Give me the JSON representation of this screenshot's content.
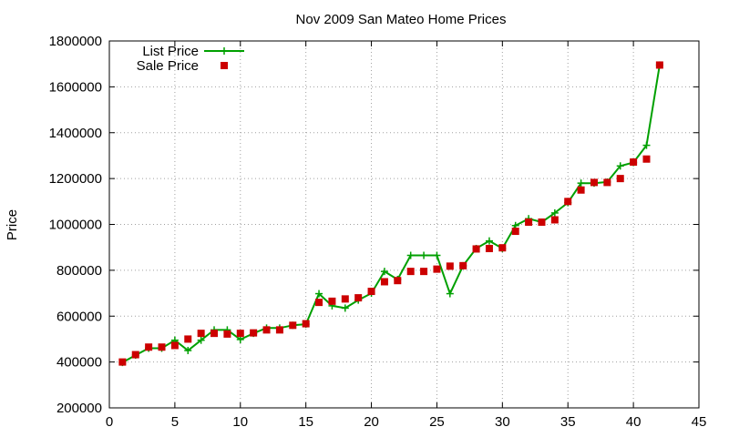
{
  "chart_data": {
    "type": "line",
    "title": "Nov 2009 San Mateo Home Prices",
    "xlabel": "",
    "ylabel": "Price",
    "xlim": [
      0,
      45
    ],
    "ylim": [
      200000,
      1800000
    ],
    "x_ticks": [
      0,
      5,
      10,
      15,
      20,
      25,
      30,
      35,
      40,
      45
    ],
    "y_ticks": [
      200000,
      400000,
      600000,
      800000,
      1000000,
      1200000,
      1400000,
      1600000,
      1800000
    ],
    "grid": true,
    "legend_position": "top-left",
    "series": [
      {
        "name": "List Price",
        "style": "line-with-plus-markers",
        "color": "#00a000",
        "x": [
          1,
          2,
          3,
          4,
          5,
          6,
          7,
          8,
          9,
          10,
          11,
          12,
          13,
          14,
          15,
          16,
          17,
          18,
          19,
          20,
          21,
          22,
          23,
          24,
          25,
          26,
          27,
          28,
          29,
          30,
          31,
          32,
          33,
          34,
          35,
          36,
          37,
          38,
          39,
          40,
          41,
          42
        ],
        "values": [
          398000,
          430000,
          460000,
          460000,
          495000,
          450000,
          495000,
          540000,
          540000,
          498000,
          525000,
          548000,
          548000,
          560000,
          565000,
          698000,
          645000,
          635000,
          670000,
          700000,
          795000,
          760000,
          865000,
          865000,
          865000,
          698000,
          820000,
          895000,
          928000,
          895000,
          995000,
          1025000,
          1010000,
          1050000,
          1095000,
          1180000,
          1180000,
          1185000,
          1255000,
          1270000,
          1345000,
          1695000
        ]
      },
      {
        "name": "Sale Price",
        "style": "square-markers",
        "color": "#cc0000",
        "x": [
          1,
          2,
          3,
          4,
          5,
          6,
          7,
          8,
          9,
          10,
          11,
          12,
          13,
          14,
          15,
          16,
          17,
          18,
          19,
          20,
          21,
          22,
          23,
          24,
          25,
          26,
          27,
          28,
          29,
          30,
          31,
          32,
          33,
          34,
          35,
          36,
          37,
          38,
          39,
          40,
          41,
          42
        ],
        "values": [
          400000,
          432000,
          465000,
          465000,
          472000,
          500000,
          525000,
          525000,
          522000,
          525000,
          527000,
          540000,
          540000,
          560000,
          567000,
          660000,
          665000,
          675000,
          680000,
          708000,
          750000,
          755000,
          795000,
          795000,
          805000,
          818000,
          820000,
          893000,
          895000,
          898000,
          970000,
          1010000,
          1010000,
          1020000,
          1100000,
          1150000,
          1183000,
          1183000,
          1200000,
          1272000,
          1285000,
          1695000
        ]
      }
    ]
  }
}
